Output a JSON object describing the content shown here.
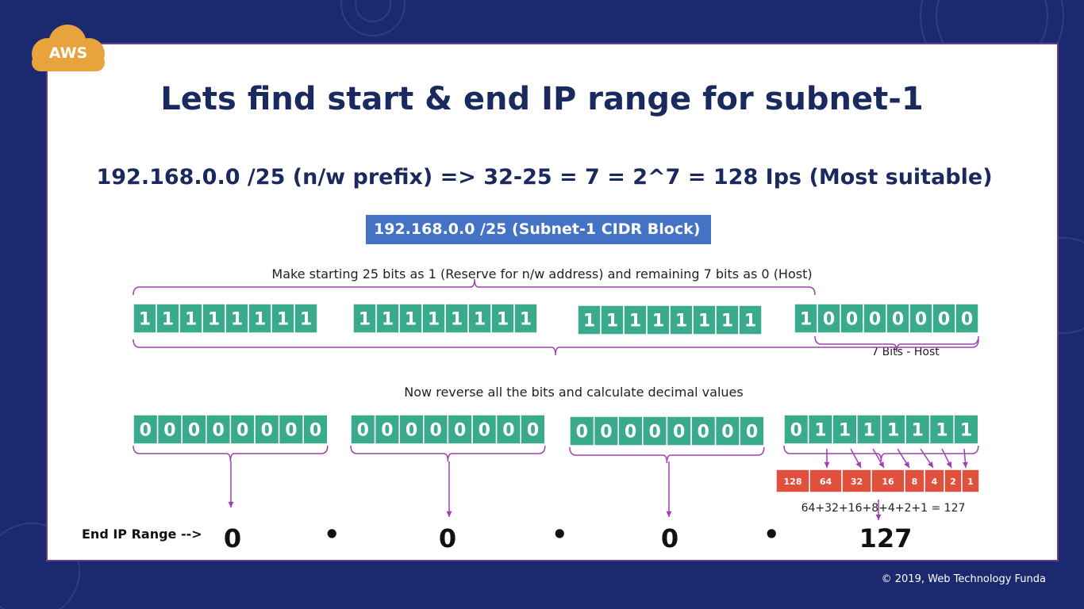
{
  "logo_text": "AWS",
  "title": "Lets find start & end IP range for subnet-1",
  "formula": "192.168.0.0 /25 (n/w prefix) => 32-25 = 7 = 2^7 = 128 Ips (Most suitable)",
  "cidr_label": "192.168.0.0 /25 (Subnet-1 CIDR Block)",
  "caption_top": "Make starting 25 bits as 1 (Reserve for n/w address) and remaining 7 bits as 0 (Host)",
  "host_label": "7 Bits - Host",
  "caption_mid": "Now reverse all the bits and calculate decimal values",
  "mask_octets": [
    [
      1,
      1,
      1,
      1,
      1,
      1,
      1,
      1
    ],
    [
      1,
      1,
      1,
      1,
      1,
      1,
      1,
      1
    ],
    [
      1,
      1,
      1,
      1,
      1,
      1,
      1,
      1
    ],
    [
      1,
      0,
      0,
      0,
      0,
      0,
      0,
      0
    ]
  ],
  "reversed_octets": [
    [
      0,
      0,
      0,
      0,
      0,
      0,
      0,
      0
    ],
    [
      0,
      0,
      0,
      0,
      0,
      0,
      0,
      0
    ],
    [
      0,
      0,
      0,
      0,
      0,
      0,
      0,
      0
    ],
    [
      0,
      1,
      1,
      1,
      1,
      1,
      1,
      1
    ]
  ],
  "weights": [
    128,
    64,
    32,
    16,
    8,
    4,
    2,
    1
  ],
  "sum_label": "64+32+16+8+4+2+1 = 127",
  "end_label": "End IP Range -->",
  "end_octets": [
    "0",
    "0",
    "0",
    "127"
  ],
  "dot": "•",
  "copyright": "© 2019, Web Technology Funda",
  "colors": {
    "bit_fill": "#3aaa8c",
    "weight_fill": "#e0503c",
    "brace": "#a040b0",
    "cidr_bg": "#4472c4",
    "background": "#1b2a6e"
  }
}
